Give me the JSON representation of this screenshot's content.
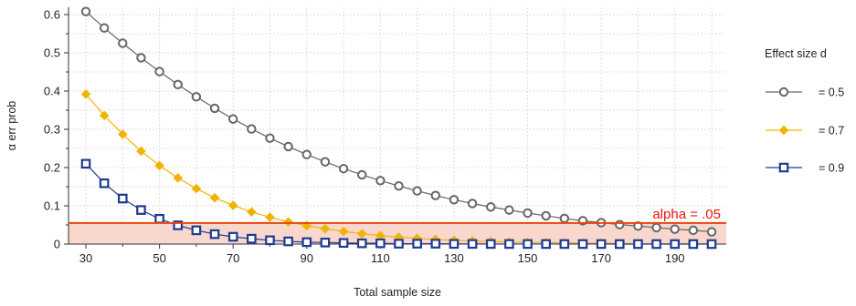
{
  "chart_data": {
    "type": "line",
    "xlabel": "Total sample size",
    "ylabel": "α err prob",
    "xlim": [
      30,
      200
    ],
    "ylim": [
      0,
      0.62
    ],
    "x_tick_labels": [
      "30",
      "50",
      "70",
      "90",
      "110",
      "130",
      "150",
      "170",
      "190"
    ],
    "y_tick_labels": [
      "0",
      "0.1",
      "0.2",
      "0.3",
      "0.4",
      "0.5",
      "0.6"
    ],
    "grid": true,
    "x": [
      30,
      35,
      40,
      45,
      50,
      55,
      60,
      65,
      70,
      75,
      80,
      85,
      90,
      95,
      100,
      105,
      110,
      115,
      120,
      125,
      130,
      135,
      140,
      145,
      150,
      155,
      160,
      165,
      170,
      175,
      180,
      185,
      190,
      195,
      200
    ],
    "legend_title": "Effect size d",
    "legend_position": "right",
    "series": [
      {
        "name": "= 0.5",
        "color": "#666666",
        "marker": "circle",
        "values": [
          0.608,
          0.565,
          0.525,
          0.487,
          0.451,
          0.417,
          0.385,
          0.355,
          0.327,
          0.301,
          0.277,
          0.255,
          0.234,
          0.215,
          0.197,
          0.181,
          0.166,
          0.152,
          0.139,
          0.127,
          0.116,
          0.106,
          0.097,
          0.089,
          0.081,
          0.074,
          0.067,
          0.061,
          0.056,
          0.051,
          0.047,
          0.043,
          0.039,
          0.036,
          0.032
        ]
      },
      {
        "name": "= 0.7",
        "color": "#f0b400",
        "marker": "diamond",
        "values": [
          0.392,
          0.336,
          0.287,
          0.243,
          0.205,
          0.173,
          0.145,
          0.121,
          0.101,
          0.084,
          0.07,
          0.058,
          0.048,
          0.04,
          0.033,
          0.027,
          0.022,
          0.018,
          0.015,
          0.012,
          0.01,
          0.008,
          0.007,
          0.005,
          0.004,
          0.004,
          0.003,
          0.002,
          0.002,
          0.002,
          0.001,
          0.001,
          0.001,
          0.001,
          0.001
        ]
      },
      {
        "name": "= 0.9",
        "color": "#1f3a93",
        "marker": "square",
        "values": [
          0.21,
          0.159,
          0.119,
          0.089,
          0.066,
          0.049,
          0.036,
          0.026,
          0.019,
          0.014,
          0.01,
          0.007,
          0.005,
          0.004,
          0.003,
          0.002,
          0.002,
          0.001,
          0.001,
          0.001,
          0.0005,
          0.0004,
          0.0003,
          0.0002,
          0.0002,
          0.0001,
          0.0001,
          0.0001,
          0.0001,
          0,
          0,
          0,
          0,
          0,
          0
        ]
      }
    ],
    "annotations": [
      {
        "text": "alpha = .05",
        "y": 0.055,
        "color": "#e8140a",
        "shade_color": "#f9d7cc"
      }
    ],
    "colors": {
      "axis": "#333333",
      "grid": "#dddddd"
    }
  }
}
